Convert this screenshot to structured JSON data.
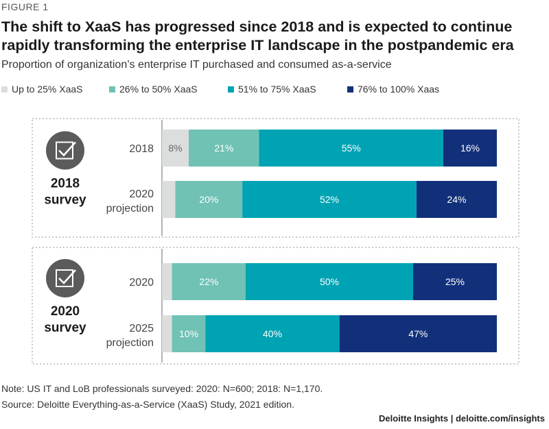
{
  "figure_label": "FIGURE 1",
  "title": "The shift to XaaS has progressed since 2018 and is expected to continue rapidly transforming the enterprise IT landscape in the postpandemic era",
  "subtitle": "Proportion of organization’s enterprise IT purchased and consumed as-a-service",
  "note": "Note: US IT and LoB professionals surveyed: 2020: N=600; 2018: N=1,170.",
  "source": "Source: Deloitte Everything-as-a-Service (XaaS) Study, 2021 edition.",
  "credit": "Deloitte Insights | deloitte.com/insights",
  "colors": {
    "up25": "#dcdddd",
    "s26_50": "#6fc2b4",
    "s51_75": "#00a3b4",
    "s76_100": "#12307a",
    "icon": "#5b5b5b",
    "dotted": "#c8c8c8",
    "axis": "#999999"
  },
  "chart_data": {
    "type": "bar",
    "orientation": "horizontal",
    "stacked": true,
    "xlim": [
      0,
      100
    ],
    "legend_position": "top",
    "series": [
      {
        "name": "Up to 25% XaaS",
        "color": "#dcdddd"
      },
      {
        "name": "26% to 50% XaaS",
        "color": "#6fc2b4"
      },
      {
        "name": "51% to 75% XaaS",
        "color": "#00a3b4"
      },
      {
        "name": "76% to 100% Xaas",
        "color": "#12307a"
      }
    ],
    "groups": [
      {
        "label_line1": "2018",
        "label_line2": "survey",
        "bars": [
          {
            "line1": "2018",
            "line2": "",
            "values": [
              8,
              21,
              55,
              16
            ],
            "labels": [
              "8%",
              "21%",
              "55%",
              "16%"
            ]
          },
          {
            "line1": "2020",
            "line2": "projection",
            "values": [
              4,
              20,
              52,
              24
            ],
            "labels": [
              "",
              "20%",
              "52%",
              "24%"
            ]
          }
        ]
      },
      {
        "label_line1": "2020",
        "label_line2": "survey",
        "bars": [
          {
            "line1": "2020",
            "line2": "",
            "values": [
              3,
              22,
              50,
              25
            ],
            "labels": [
              "",
              "22%",
              "50%",
              "25%"
            ]
          },
          {
            "line1": "2025",
            "line2": "projection",
            "values": [
              3,
              10,
              40,
              47
            ],
            "labels": [
              "",
              "10%",
              "40%",
              "47%"
            ]
          }
        ]
      }
    ]
  }
}
